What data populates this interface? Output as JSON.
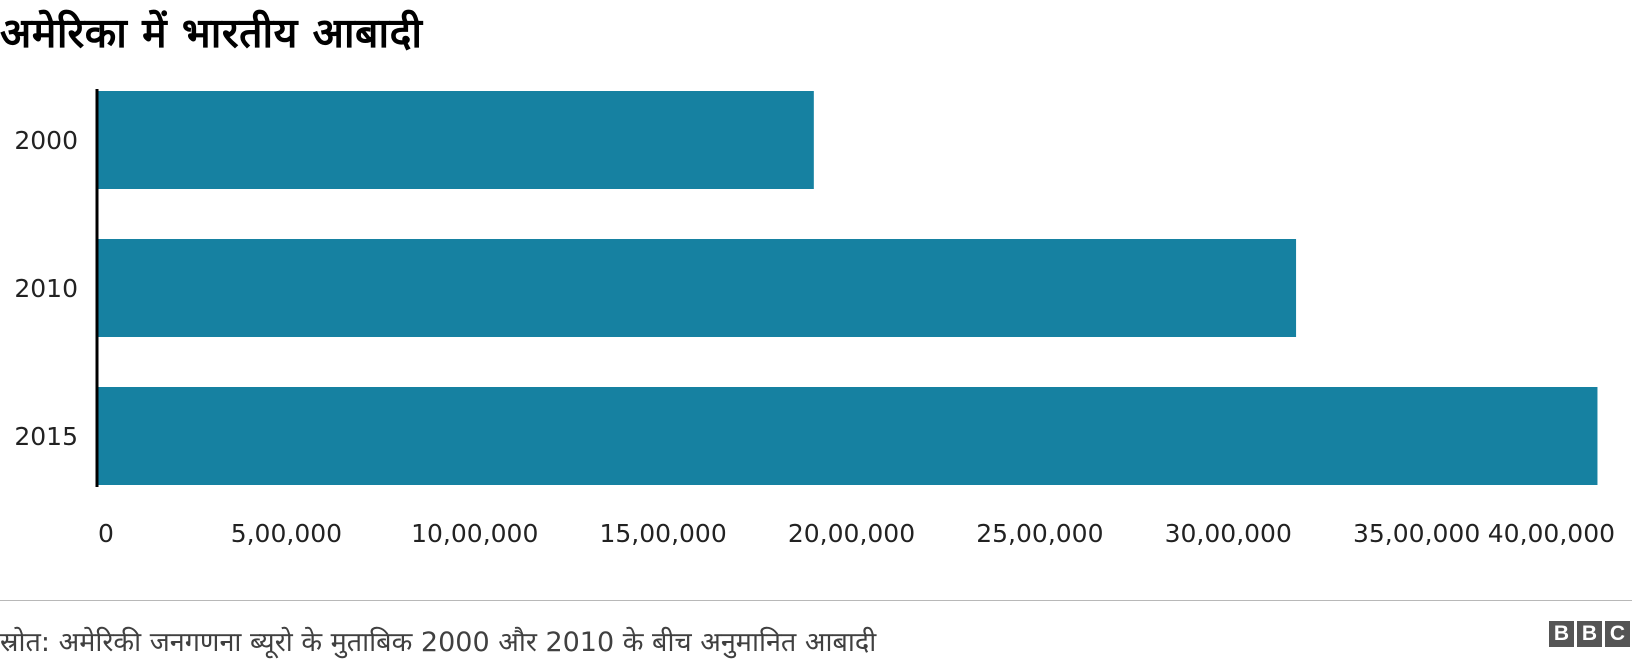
{
  "chart_data": {
    "type": "bar",
    "orientation": "horizontal",
    "title": "अमेरिका में भारतीय आबादी",
    "categories": [
      "2000",
      "2010",
      "2015"
    ],
    "values": [
      1900000,
      3180000,
      3980000
    ],
    "xlim": [
      0,
      4000000
    ],
    "x_ticks": [
      0,
      500000,
      1000000,
      1500000,
      2000000,
      2500000,
      3000000,
      3500000,
      4000000
    ],
    "x_tick_labels": [
      "0",
      "5,00,000",
      "10,00,000",
      "15,00,000",
      "20,00,000",
      "25,00,000",
      "30,00,000",
      "35,00,000",
      "40,00,000"
    ],
    "grid": false,
    "bar_color": "#1681a1"
  },
  "footer": {
    "source": "स्रोत: अमेरिकी जनगणना ब्यूरो के मुताबिक 2000 और 2010 के बीच अनुमानित आबादी",
    "logo_letters": [
      "B",
      "B",
      "C"
    ]
  }
}
